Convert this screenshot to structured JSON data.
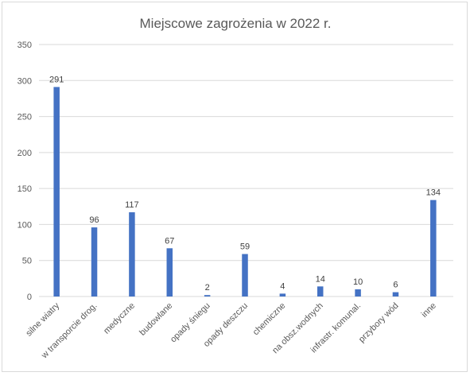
{
  "chart_data": {
    "type": "bar",
    "title": "Miejscowe zagrożenia w 2022 r.",
    "xlabel": "",
    "ylabel": "",
    "categories": [
      "silne wiatry",
      "w transporcie drog.",
      "medyczne",
      "budowlane",
      "opady śniegu",
      "opady deszczu",
      "chemiczne",
      "na obsz.wodnych",
      "infrastr. komunal.",
      "przybory wód",
      "inne"
    ],
    "values": [
      291,
      96,
      117,
      67,
      2,
      59,
      4,
      14,
      10,
      6,
      134
    ],
    "ylim": [
      0,
      350
    ],
    "yticks": [
      0,
      50,
      100,
      150,
      200,
      250,
      300,
      350
    ],
    "grid": true,
    "data_labels": true,
    "legend": "none",
    "bar_color": "#4472C4",
    "grid_color": "#D9D9D9",
    "border_color": "#D9D9D9"
  }
}
